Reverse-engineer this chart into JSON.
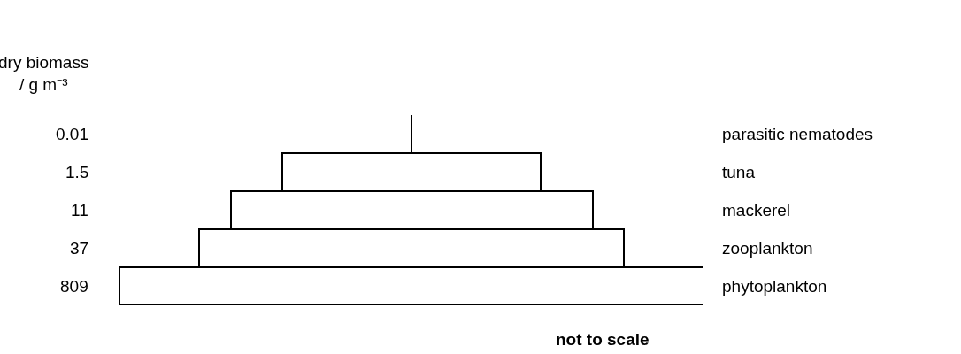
{
  "chart_data": {
    "type": "other",
    "ylabel": "dry biomass\n/ g m⁻³",
    "categories": [
      "parasitic nematodes",
      "tuna",
      "mackerel",
      "zooplankton",
      "phytoplankton"
    ],
    "values": [
      0.01,
      1.5,
      11,
      37,
      809
    ],
    "data_labels": true,
    "color": "#ffffff",
    "annotations": [
      "not to scale"
    ]
  }
}
